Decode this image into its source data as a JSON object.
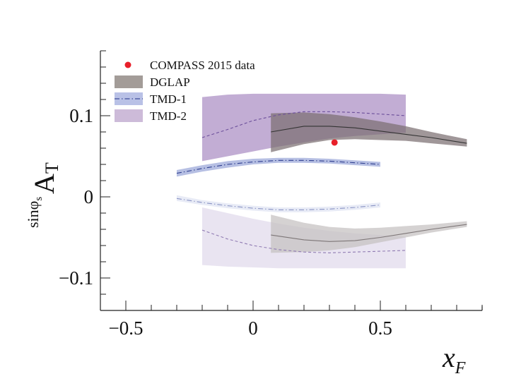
{
  "chart_data": {
    "type": "area",
    "xlabel": "x",
    "xlabel_sub": "F",
    "ylabel": "A",
    "ylabel_sub": "T",
    "ylabel_sup": "sinφ",
    "ylabel_sup_sub": "s",
    "xlim": [
      -0.6,
      0.9
    ],
    "ylim": [
      -0.14,
      0.18
    ],
    "x_ticks": [
      {
        "value": -0.5,
        "label": "−0.5"
      },
      {
        "value": 0,
        "label": "0"
      },
      {
        "value": 0.5,
        "label": "0.5"
      }
    ],
    "y_ticks": [
      {
        "value": 0.1,
        "label": "0.1"
      },
      {
        "value": 0,
        "label": "0"
      },
      {
        "value": -0.1,
        "label": "−0.1"
      }
    ],
    "legend": {
      "position": "top-left",
      "entries": [
        {
          "label": "COMPASS 2015 data",
          "kind": "marker",
          "color": "#e8202a"
        },
        {
          "label": "DGLAP",
          "kind": "band",
          "color": "#a39c98"
        },
        {
          "label": "TMD-1",
          "kind": "band-dashdot",
          "color": "#b9c1e6",
          "line_color": "#3e4d9a"
        },
        {
          "label": "TMD-2",
          "kind": "band",
          "color": "#cdbbd9"
        }
      ]
    },
    "data_points": [
      {
        "series": "COMPASS 2015 data",
        "x": 0.32,
        "y": 0.067,
        "color": "#e8202a"
      }
    ],
    "series": [
      {
        "name": "TMD-2",
        "branch": "upper",
        "fill": "#ab8ec3",
        "line": "#6b4e9a",
        "line_style": "dashed",
        "x": [
          -0.2,
          -0.1,
          0.0,
          0.1,
          0.2,
          0.3,
          0.4,
          0.5,
          0.6
        ],
        "central": [
          0.073,
          0.083,
          0.094,
          0.101,
          0.105,
          0.105,
          0.104,
          0.102,
          0.1
        ],
        "lower": [
          0.044,
          0.05,
          0.056,
          0.062,
          0.067,
          0.072,
          0.075,
          0.077,
          0.079
        ],
        "upper": [
          0.123,
          0.126,
          0.127,
          0.127,
          0.127,
          0.127,
          0.127,
          0.127,
          0.126
        ]
      },
      {
        "name": "DGLAP",
        "branch": "upper",
        "fill": "#7b6f72",
        "line": "#333333",
        "line_style": "solid",
        "x": [
          0.07,
          0.2,
          0.3,
          0.4,
          0.5,
          0.6,
          0.7,
          0.84
        ],
        "central": [
          0.08,
          0.087,
          0.087,
          0.085,
          0.081,
          0.077,
          0.073,
          0.066
        ],
        "lower": [
          0.055,
          0.065,
          0.07,
          0.071,
          0.07,
          0.069,
          0.066,
          0.062
        ],
        "upper": [
          0.103,
          0.104,
          0.102,
          0.098,
          0.093,
          0.087,
          0.08,
          0.071
        ]
      },
      {
        "name": "TMD-1",
        "branch": "upper",
        "fill": "#9aa6d8",
        "line": "#2f3f8f",
        "line_style": "dashdot",
        "x": [
          -0.3,
          -0.2,
          -0.1,
          0.0,
          0.1,
          0.2,
          0.3,
          0.4,
          0.5
        ],
        "central": [
          0.029,
          0.035,
          0.04,
          0.043,
          0.045,
          0.045,
          0.044,
          0.042,
          0.04
        ],
        "lower": [
          0.025,
          0.031,
          0.036,
          0.04,
          0.042,
          0.042,
          0.041,
          0.039,
          0.037
        ],
        "upper": [
          0.033,
          0.039,
          0.044,
          0.047,
          0.048,
          0.048,
          0.047,
          0.045,
          0.043
        ]
      },
      {
        "name": "TMD-1",
        "branch": "lower",
        "fill": "#dfe3f3",
        "line": "#8a94c4",
        "line_style": "dashdot",
        "x": [
          -0.3,
          -0.2,
          -0.1,
          0.0,
          0.1,
          0.2,
          0.3,
          0.4,
          0.5
        ],
        "central": [
          -0.002,
          -0.007,
          -0.011,
          -0.014,
          -0.016,
          -0.016,
          -0.015,
          -0.013,
          -0.01
        ],
        "lower": [
          -0.005,
          -0.01,
          -0.014,
          -0.017,
          -0.019,
          -0.019,
          -0.018,
          -0.016,
          -0.013
        ],
        "upper": [
          0.002,
          -0.004,
          -0.008,
          -0.011,
          -0.013,
          -0.013,
          -0.012,
          -0.01,
          -0.007
        ]
      },
      {
        "name": "TMD-2",
        "branch": "lower",
        "fill": "#e1d9ec",
        "line": "#8f7ab2",
        "line_style": "dashed",
        "x": [
          -0.2,
          -0.1,
          0.0,
          0.1,
          0.2,
          0.3,
          0.4,
          0.5,
          0.6
        ],
        "central": [
          -0.041,
          -0.052,
          -0.06,
          -0.065,
          -0.068,
          -0.069,
          -0.068,
          -0.067,
          -0.066
        ],
        "lower": [
          -0.084,
          -0.086,
          -0.087,
          -0.088,
          -0.088,
          -0.088,
          -0.088,
          -0.088,
          -0.088
        ],
        "upper": [
          -0.013,
          -0.02,
          -0.027,
          -0.033,
          -0.038,
          -0.042,
          -0.045,
          -0.047,
          -0.049
        ]
      },
      {
        "name": "DGLAP",
        "branch": "lower",
        "fill": "#c5c1c0",
        "line": "#7d7677",
        "line_style": "solid",
        "x": [
          0.07,
          0.2,
          0.3,
          0.4,
          0.5,
          0.6,
          0.7,
          0.84
        ],
        "central": [
          -0.047,
          -0.053,
          -0.055,
          -0.054,
          -0.05,
          -0.045,
          -0.04,
          -0.034
        ],
        "lower": [
          -0.069,
          -0.068,
          -0.066,
          -0.062,
          -0.056,
          -0.05,
          -0.044,
          -0.037
        ],
        "upper": [
          -0.022,
          -0.032,
          -0.037,
          -0.039,
          -0.038,
          -0.036,
          -0.034,
          -0.03
        ]
      }
    ]
  }
}
